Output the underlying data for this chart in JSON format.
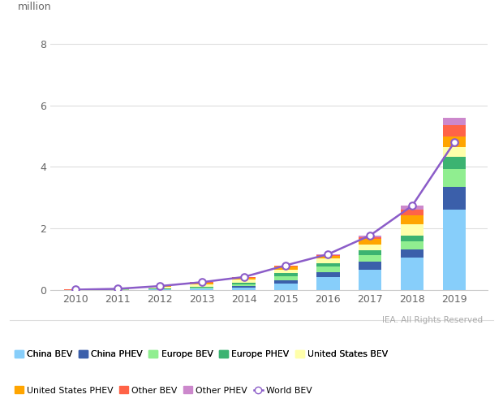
{
  "years": [
    2010,
    2011,
    2012,
    2013,
    2014,
    2015,
    2016,
    2017,
    2018,
    2019
  ],
  "china_bev": [
    0.006,
    0.013,
    0.021,
    0.048,
    0.083,
    0.207,
    0.417,
    0.662,
    1.06,
    2.62
  ],
  "china_phev": [
    0.0,
    0.0,
    0.001,
    0.005,
    0.053,
    0.112,
    0.162,
    0.271,
    0.273,
    0.74
  ],
  "europe_bev": [
    0.003,
    0.01,
    0.02,
    0.035,
    0.055,
    0.14,
    0.185,
    0.21,
    0.25,
    0.565
  ],
  "europe_phev": [
    0.0,
    0.001,
    0.002,
    0.01,
    0.037,
    0.085,
    0.105,
    0.15,
    0.185,
    0.39
  ],
  "us_bev": [
    0.005,
    0.01,
    0.053,
    0.097,
    0.119,
    0.116,
    0.157,
    0.196,
    0.361,
    0.328
  ],
  "us_phev": [
    0.002,
    0.008,
    0.032,
    0.055,
    0.063,
    0.112,
    0.088,
    0.182,
    0.3,
    0.33
  ],
  "other_bev": [
    0.001,
    0.001,
    0.002,
    0.004,
    0.008,
    0.017,
    0.03,
    0.055,
    0.19,
    0.38
  ],
  "other_phev": [
    0.0,
    0.001,
    0.002,
    0.005,
    0.01,
    0.018,
    0.022,
    0.05,
    0.12,
    0.25
  ],
  "world_bev_line": [
    0.017,
    0.044,
    0.133,
    0.259,
    0.428,
    0.807,
    1.166,
    1.776,
    2.739,
    4.793
  ],
  "colors": {
    "china_bev": "#87CEFA",
    "china_phev": "#3B5FAA",
    "europe_bev": "#90EE90",
    "europe_phev": "#3CB371",
    "us_bev": "#FFFFAA",
    "us_phev": "#FFA500",
    "other_bev": "#FF6347",
    "other_phev": "#CC88CC"
  },
  "line_color": "#8B5CC8",
  "ylabel": "million",
  "yticks": [
    0,
    2,
    4,
    6,
    8
  ],
  "ylim": [
    0,
    8.5
  ],
  "watermark": "IEA. All Rights Reserved"
}
